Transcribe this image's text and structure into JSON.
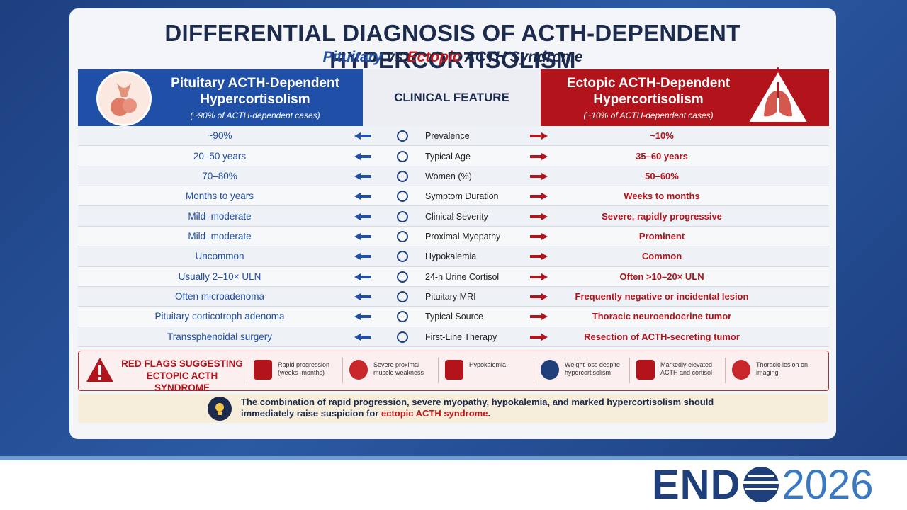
{
  "title": "DIFFERENTIAL DIAGNOSIS OF ACTH-DEPENDENT HYPERCORTISOLISM",
  "subtitle": {
    "left": "Pituitary",
    "vs": "vs",
    "right": "Ectopic",
    "rest": "ACTH Syndrome"
  },
  "header": {
    "left": {
      "title": "Pituitary ACTH-Dependent Hypercortisolism",
      "note": "(~90% of ACTH-dependent cases)"
    },
    "center": "CLINICAL FEATURE",
    "right": {
      "title": "Ectopic ACTH-Dependent Hypercortisolism",
      "note": "(~10% of ACTH-dependent cases)"
    }
  },
  "table": {
    "rows": [
      [
        "~90%",
        "Prevalence",
        "~10%"
      ],
      [
        "20–50 years",
        "Typical Age",
        "35–60 years"
      ],
      [
        "70–80%",
        "Women (%)",
        "50–60%"
      ],
      [
        "Months to years",
        "Symptom Duration",
        "Weeks to months"
      ],
      [
        "Mild–moderate",
        "Clinical Severity",
        "Severe, rapidly progressive"
      ],
      [
        "Mild–moderate",
        "Proximal Myopathy",
        "Prominent"
      ],
      [
        "Uncommon",
        "Hypokalemia",
        "Common"
      ],
      [
        "Usually 2–10× ULN",
        "24-h Urine Cortisol",
        "Often >10–20× ULN"
      ],
      [
        "Often microadenoma",
        "Pituitary MRI",
        "Frequently negative or incidental lesion"
      ],
      [
        "Pituitary corticotroph adenoma",
        "Typical Source",
        "Thoracic neuroendocrine tumor"
      ],
      [
        "Transsphenoidal surgery",
        "First-Line Therapy",
        "Resection of ACTH-secreting tumor"
      ]
    ]
  },
  "red_flags": {
    "title": "RED FLAGS SUGGESTING ECTOPIC ACTH SYNDROME",
    "items": [
      "Rapid progression (weeks–months)",
      "Severe proximal muscle weakness",
      "Hypokalemia",
      "Weight loss despite hypercortisolism",
      "Markedly elevated ACTH and cortisol",
      "Thoracic lesion on imaging"
    ]
  },
  "note": {
    "text": "The combination of rapid progression, severe myopathy, hypokalemia, and marked hypercortisolism should immediately raise suspicion for",
    "highlight": "ectopic ACTH syndrome",
    "end": "."
  },
  "logo": {
    "left": "END",
    "right": "2026"
  }
}
